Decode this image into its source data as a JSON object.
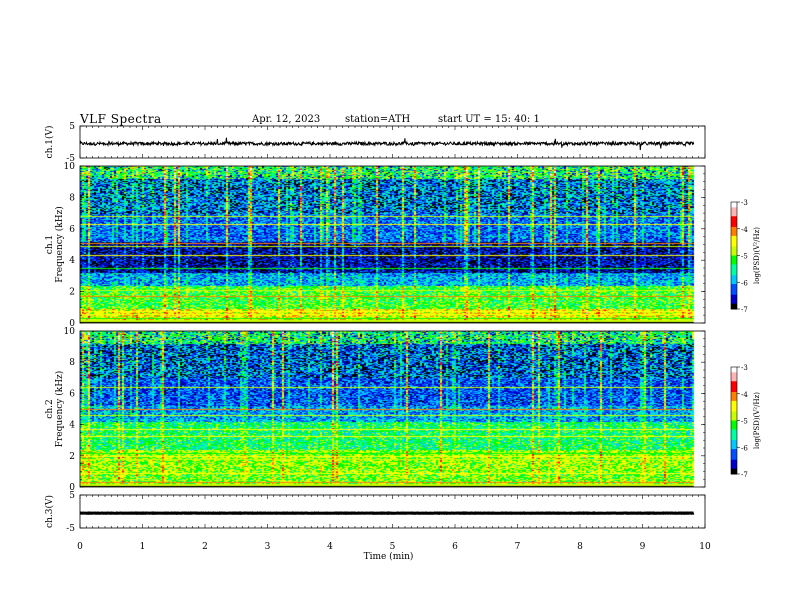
{
  "header": {
    "title": "VLF  Spectra",
    "date": "Apr. 12, 2023",
    "station": "station=ATH",
    "start": "start  UT  =   15: 40: 1"
  },
  "colors": {
    "background": "#ffffff",
    "waveform": "#000000",
    "colormap": [
      "#000000",
      "#0000c8",
      "#0050ff",
      "#00c8ff",
      "#00ffa0",
      "#00ff00",
      "#c8ff00",
      "#ffff00",
      "#ff8000",
      "#ff0000",
      "#ffb4b4",
      "#ffffff"
    ]
  },
  "chart_data": [
    {
      "type": "line",
      "name": "ch1-waveform",
      "ylabel": "ch.1(V)",
      "ylim": [
        -5,
        5
      ],
      "yticks": [
        "5",
        "-5"
      ],
      "xlim": [
        0,
        10
      ],
      "baseline": -0.5,
      "amplitude": 1.0,
      "series_extent_min": [
        0,
        9.82
      ]
    },
    {
      "type": "heatmap",
      "name": "ch1-spectrogram",
      "ylabel": "ch.1\nFrequency  (kHz)",
      "ylim": [
        0,
        10
      ],
      "yticks": [
        "0",
        "2",
        "4",
        "6",
        "8",
        "10"
      ],
      "xlim": [
        0,
        10
      ],
      "time_extent_min": [
        0,
        9.82
      ],
      "colorbar": {
        "label": "log(PSD)(V²/Hz)",
        "ticks": [
          "-3",
          "-4",
          "-5",
          "-6",
          "-7"
        ],
        "range": [
          -7,
          -3
        ]
      },
      "frequency_bands_khz": [
        {
          "f0": 0.0,
          "f1": 0.25,
          "level": -2.8
        },
        {
          "f0": 0.25,
          "f1": 0.9,
          "level": -4.6
        },
        {
          "f0": 0.9,
          "f1": 2.4,
          "level": -5.2
        },
        {
          "f0": 2.4,
          "f1": 3.2,
          "level": -6.0
        },
        {
          "f0": 3.2,
          "f1": 5.2,
          "level": -6.7
        },
        {
          "f0": 5.2,
          "f1": 7.0,
          "level": -6.2
        },
        {
          "f0": 7.0,
          "f1": 9.2,
          "level": -6.0
        },
        {
          "f0": 9.2,
          "f1": 10.0,
          "level": -5.2
        }
      ],
      "tonal_lines_khz": [
        0.3,
        0.6,
        0.75,
        1.7,
        2.1,
        3.5,
        4.3,
        4.9,
        5.1,
        6.3,
        6.8
      ]
    },
    {
      "type": "heatmap",
      "name": "ch2-spectrogram",
      "ylabel": "ch.2\nFrequency  (kHz)",
      "ylim": [
        0,
        10
      ],
      "yticks": [
        "0",
        "2",
        "4",
        "6",
        "8",
        "10"
      ],
      "xlim": [
        0,
        10
      ],
      "time_extent_min": [
        0,
        9.82
      ],
      "colorbar": {
        "label": "log(PSD)(V²/Hz)",
        "ticks": [
          "-3",
          "-4",
          "-5",
          "-6",
          "-7"
        ],
        "range": [
          -7,
          -3
        ]
      },
      "frequency_bands_khz": [
        {
          "f0": 0.0,
          "f1": 0.25,
          "level": -2.8
        },
        {
          "f0": 0.25,
          "f1": 1.0,
          "level": -5.0
        },
        {
          "f0": 1.0,
          "f1": 2.4,
          "level": -4.9
        },
        {
          "f0": 2.4,
          "f1": 4.2,
          "level": -5.4
        },
        {
          "f0": 4.2,
          "f1": 5.2,
          "level": -6.0
        },
        {
          "f0": 5.2,
          "f1": 7.0,
          "level": -6.3
        },
        {
          "f0": 7.0,
          "f1": 9.2,
          "level": -6.1
        },
        {
          "f0": 9.2,
          "f1": 10.0,
          "level": -5.3
        }
      ],
      "tonal_lines_khz": [
        0.3,
        0.9,
        1.8,
        2.0,
        2.2,
        3.3,
        3.7,
        4.6,
        5.0,
        6.4
      ]
    },
    {
      "type": "line",
      "name": "ch3-waveform",
      "ylabel": "ch.3(V)",
      "ylim": [
        -5,
        5
      ],
      "yticks": [
        "5",
        "-5"
      ],
      "xlim": [
        0,
        10
      ],
      "xlabel": "Time  (min)",
      "xticks": [
        "0",
        "1",
        "2",
        "3",
        "4",
        "5",
        "6",
        "7",
        "8",
        "9",
        "10"
      ],
      "baseline": -0.5,
      "amplitude": 0.1,
      "series_extent_min": [
        0,
        9.82
      ]
    }
  ]
}
